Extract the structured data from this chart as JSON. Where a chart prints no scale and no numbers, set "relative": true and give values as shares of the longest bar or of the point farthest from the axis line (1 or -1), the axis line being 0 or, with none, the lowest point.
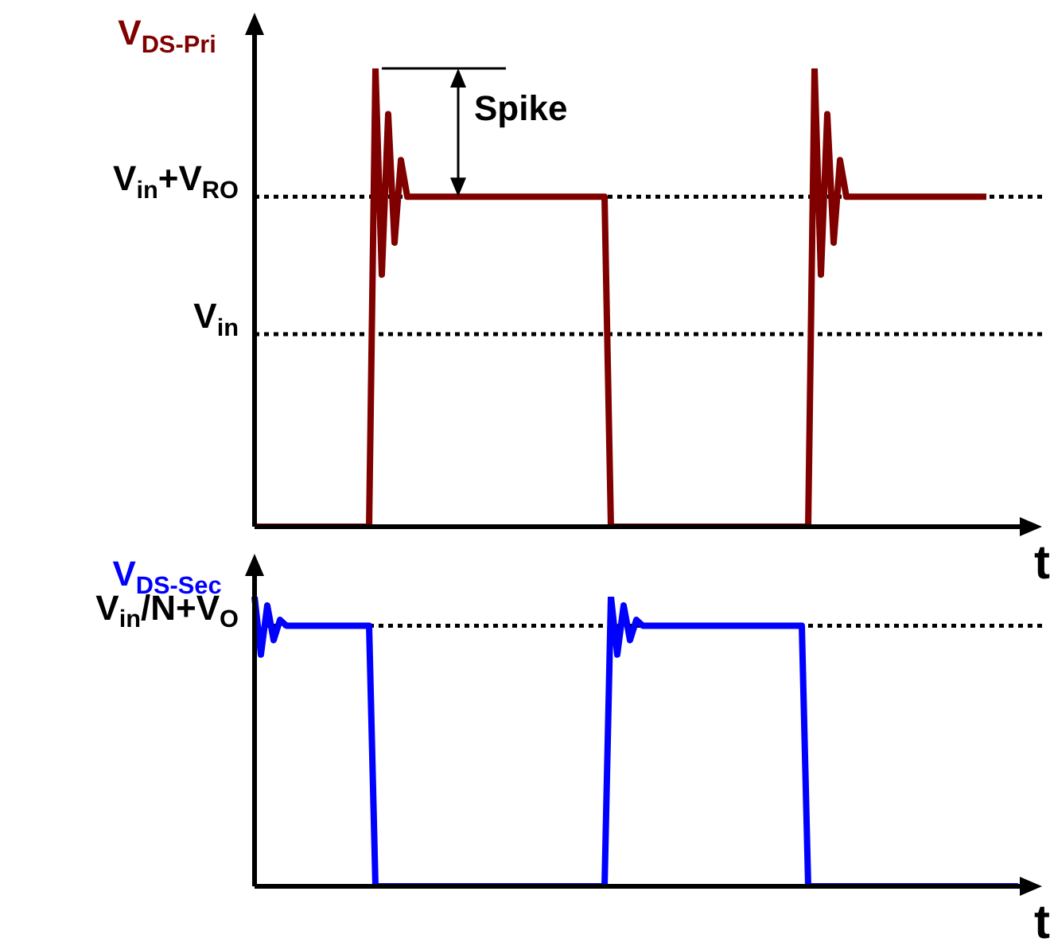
{
  "chart_data": [
    {
      "type": "line",
      "ylabel": "V$_{DS-Pri}$",
      "xlabel": "t",
      "relative": true,
      "tick_labels": false,
      "marker": "none",
      "line_style": "solid",
      "categories": [
        null,
        null,
        null,
        null,
        null,
        null,
        null,
        null,
        null,
        null,
        null,
        null,
        null,
        null,
        null,
        null,
        null,
        null,
        null,
        null,
        null,
        null,
        null,
        null,
        null,
        null,
        null,
        null,
        null,
        null,
        null,
        null,
        null,
        null,
        null,
        null,
        null,
        null,
        null,
        null,
        null,
        null,
        null,
        null,
        null,
        null,
        null,
        null,
        null,
        null,
        null,
        null,
        null,
        null,
        null,
        null,
        null,
        null,
        null,
        null,
        null,
        null,
        null,
        null,
        null,
        null,
        null,
        null,
        null,
        null,
        null,
        null,
        null,
        null,
        null,
        null,
        null,
        null,
        null,
        null,
        null,
        null,
        null,
        null,
        null,
        null,
        null,
        null,
        null,
        null,
        null,
        null,
        null,
        null,
        null,
        null,
        null,
        null,
        null,
        null,
        null,
        null,
        null,
        null,
        null,
        null,
        null,
        null,
        null,
        null,
        null,
        null,
        null,
        null,
        null,
        null,
        null,
        null,
        null,
        null,
        null
      ],
      "series": [
        {
          "color": "#800000",
          "values": [
            0,
            0,
            0,
            0,
            0,
            0,
            0,
            0,
            0,
            0,
            0,
            0,
            0,
            0,
            0,
            0,
            0,
            0,
            0,
            1,
            0.55,
            0.9,
            0.62,
            0.8,
            0.72,
            0.72,
            0.72,
            0.72,
            0.72,
            0.72,
            0.72,
            0.72,
            0.72,
            0.72,
            0.72,
            0.72,
            0.72,
            0.72,
            0.72,
            0.72,
            0.72,
            0.72,
            0.72,
            0.72,
            0.72,
            0.72,
            0.72,
            0.72,
            0.72,
            0.72,
            0.72,
            0.72,
            0.72,
            0.72,
            0.72,
            0.72,
            0,
            0,
            0,
            0,
            0,
            0,
            0,
            0,
            0,
            0,
            0,
            0,
            0,
            0,
            0,
            0,
            0,
            0,
            0,
            0,
            0,
            0,
            0,
            0,
            0,
            0,
            0,
            0,
            0,
            0,
            0,
            0,
            1,
            0.55,
            0.9,
            0.62,
            0.8,
            0.72,
            0.72,
            0.72,
            0.72,
            0.72,
            0.72,
            0.72,
            0.72,
            0.72,
            0.72,
            0.72,
            0.72,
            0.72,
            0.72,
            0.72,
            0.72,
            0.72,
            0.72,
            0.72,
            0.72,
            0.72,
            0.72,
            0.72,
            null,
            null,
            null,
            null,
            null
          ]
        }
      ],
      "ref_lines": [
        {
          "axis": "y",
          "value": 0.72,
          "label": "V$_{in}$+V$_{RO}$",
          "line_style": "dotted",
          "color": "#000000"
        },
        {
          "axis": "y",
          "value": 0.42,
          "label": "V$_{in}$",
          "line_style": "dotted",
          "color": "#000000"
        }
      ],
      "annotations": [
        "Spike"
      ]
    },
    {
      "type": "line",
      "ylabel": "V$_{DS-Sec}$",
      "xlabel": "t",
      "relative": true,
      "tick_labels": false,
      "marker": "none",
      "line_style": "solid",
      "categories": [
        null,
        null,
        null,
        null,
        null,
        null,
        null,
        null,
        null,
        null,
        null,
        null,
        null,
        null,
        null,
        null,
        null,
        null,
        null,
        null,
        null,
        null,
        null,
        null,
        null,
        null,
        null,
        null,
        null,
        null,
        null,
        null,
        null,
        null,
        null,
        null,
        null,
        null,
        null,
        null,
        null,
        null,
        null,
        null,
        null,
        null,
        null,
        null,
        null,
        null,
        null,
        null,
        null,
        null,
        null,
        null,
        null,
        null,
        null,
        null,
        null,
        null,
        null,
        null,
        null,
        null,
        null,
        null,
        null,
        null,
        null,
        null,
        null,
        null,
        null,
        null,
        null,
        null,
        null,
        null,
        null,
        null,
        null,
        null,
        null,
        null,
        null,
        null,
        null,
        null,
        null,
        null,
        null,
        null,
        null,
        null,
        null,
        null,
        null,
        null,
        null,
        null,
        null,
        null,
        null,
        null,
        null,
        null,
        null,
        null,
        null,
        null,
        null,
        null,
        null,
        null,
        null,
        null,
        null,
        null,
        null
      ],
      "series": [
        {
          "color": "#0000ff",
          "values": [
            1,
            0.8,
            0.97,
            0.85,
            0.92,
            0.9,
            0.9,
            0.9,
            0.9,
            0.9,
            0.9,
            0.9,
            0.9,
            0.9,
            0.9,
            0.9,
            0.9,
            0.9,
            0.9,
            0,
            0,
            0,
            0,
            0,
            0,
            0,
            0,
            0,
            0,
            0,
            0,
            0,
            0,
            0,
            0,
            0,
            0,
            0,
            0,
            0,
            0,
            0,
            0,
            0,
            0,
            0,
            0,
            0,
            0,
            0,
            0,
            0,
            0,
            0,
            0,
            0,
            1,
            0.8,
            0.97,
            0.85,
            0.92,
            0.9,
            0.9,
            0.9,
            0.9,
            0.9,
            0.9,
            0.9,
            0.9,
            0.9,
            0.9,
            0.9,
            0.9,
            0.9,
            0.9,
            0.9,
            0.9,
            0.9,
            0.9,
            0.9,
            0.9,
            0.9,
            0.9,
            0.9,
            0.9,
            0.9,
            0.9,
            0,
            0,
            0,
            0,
            0,
            0,
            0,
            0,
            0,
            0,
            0,
            0,
            0,
            0,
            0,
            0,
            0,
            0,
            0,
            0,
            0,
            0,
            0,
            0,
            0,
            0,
            0,
            0,
            0,
            0,
            0,
            0,
            0,
            0
          ]
        }
      ],
      "ref_lines": [
        {
          "axis": "y",
          "value": 0.9,
          "label": "V$_{in}$/N+V$_{O}$",
          "line_style": "dotted",
          "color": "#000000"
        }
      ]
    }
  ]
}
